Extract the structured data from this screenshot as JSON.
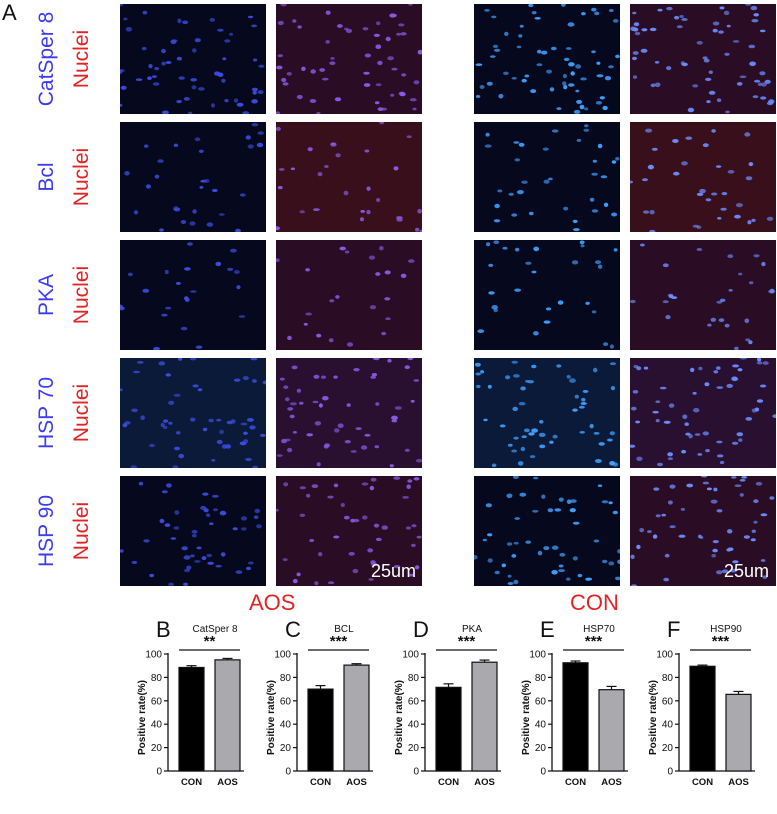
{
  "figure_letters": {
    "A": "A",
    "B": "B",
    "C": "C",
    "D": "D",
    "E": "E",
    "F": "F"
  },
  "rows": [
    {
      "marker": "CatSper 8",
      "stain": "Nuclei"
    },
    {
      "marker": "Bcl",
      "stain": "Nuclei"
    },
    {
      "marker": "PKA",
      "stain": "Nuclei"
    },
    {
      "marker": "HSP 70",
      "stain": "Nuclei"
    },
    {
      "marker": "HSP 90",
      "stain": "Nuclei"
    }
  ],
  "colors": {
    "marker_label": "#3b3bf0",
    "stain_label": "#e02424",
    "group_label": "#e02424",
    "con_bar": "#000000",
    "aos_bar": "#a9a9ae"
  },
  "groups": {
    "left": "AOS",
    "right": "CON"
  },
  "scale_bar": {
    "left": "25um",
    "right": "25um"
  },
  "chart_data": [
    {
      "type": "bar",
      "title": "CatSper 8",
      "significance": "**",
      "categories": [
        "CON",
        "AOS"
      ],
      "values": [
        88.5,
        95
      ],
      "errors": [
        1.5,
        1.2
      ],
      "ylabel": "Positive rate(%)",
      "ylim": [
        0,
        100
      ],
      "yticks": [
        "0",
        "20",
        "40",
        "60",
        "80",
        "100"
      ]
    },
    {
      "type": "bar",
      "title": "BCL",
      "significance": "***",
      "categories": [
        "CON",
        "AOS"
      ],
      "values": [
        70,
        90.5
      ],
      "errors": [
        3,
        1.2
      ],
      "ylabel": "Positive rate(%)",
      "ylim": [
        0,
        100
      ],
      "yticks": [
        "0",
        "20",
        "40",
        "60",
        "80",
        "100"
      ]
    },
    {
      "type": "bar",
      "title": "PKA",
      "significance": "***",
      "categories": [
        "CON",
        "AOS"
      ],
      "values": [
        71.5,
        93
      ],
      "errors": [
        3,
        1.8
      ],
      "ylabel": "Positive rate(%)",
      "ylim": [
        0,
        100
      ],
      "yticks": [
        "0",
        "20",
        "40",
        "60",
        "80",
        "100"
      ]
    },
    {
      "type": "bar",
      "title": "HSP70",
      "significance": "***",
      "categories": [
        "CON",
        "AOS"
      ],
      "values": [
        92.5,
        69.5
      ],
      "errors": [
        1.5,
        2.8
      ],
      "ylabel": "Positive rate(%)",
      "ylim": [
        0,
        100
      ],
      "yticks": [
        "0",
        "20",
        "40",
        "60",
        "80",
        "100"
      ]
    },
    {
      "type": "bar",
      "title": "HSP90",
      "significance": "***",
      "categories": [
        "CON",
        "AOS"
      ],
      "values": [
        89.5,
        65.5
      ],
      "errors": [
        1,
        2.5
      ],
      "ylabel": "Positive rate(%)",
      "ylim": [
        0,
        100
      ],
      "yticks": [
        "0",
        "20",
        "40",
        "60",
        "80",
        "100"
      ]
    }
  ]
}
